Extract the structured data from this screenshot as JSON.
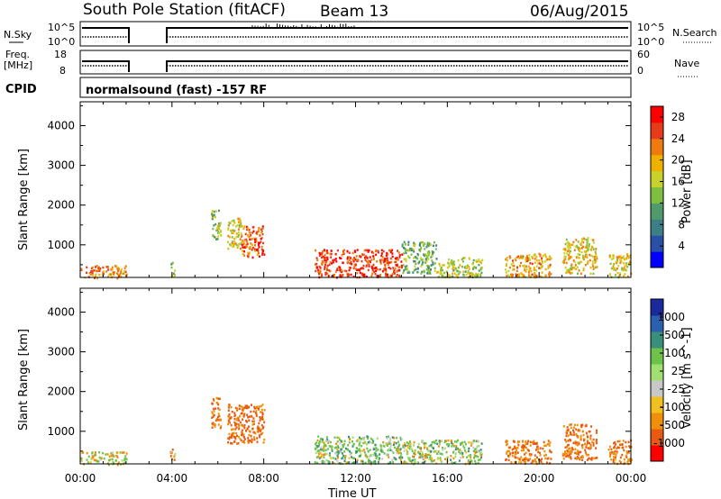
{
  "header": {
    "station": "South Pole Station (fitACF)",
    "beam": "Beam 13",
    "date": "06/Aug/2015"
  },
  "strip_noise": {
    "left_label": "N.Sky",
    "left_ticks": [
      "10^5",
      "10^0"
    ],
    "right_label": "N.Search",
    "right_ticks": [
      "10^5",
      "10^0"
    ]
  },
  "strip_freq": {
    "left_label_line1": "Freq.",
    "left_label_line2": "[MHz]",
    "left_ticks": [
      "18",
      "8"
    ],
    "right_label": "Nave",
    "right_ticks": [
      "60",
      "0"
    ]
  },
  "cpid": {
    "label": "CPID",
    "mode_text": "normalsound (fast) -157 RF"
  },
  "colors": {
    "power": [
      "#0000ff",
      "#2a4fa6",
      "#3d7f86",
      "#4e9a6a",
      "#7fbf3f",
      "#c8d22a",
      "#f0b000",
      "#f07a10",
      "#e63c1a",
      "#ff0000"
    ],
    "velocity": [
      "#1a2a9a",
      "#2b5fb0",
      "#3a8f7a",
      "#6cc24a",
      "#9fe070",
      "#c8c8c8",
      "#f0c020",
      "#f0900a",
      "#e85a10",
      "#ff0000"
    ]
  },
  "chart_data": [
    {
      "type": "heatmap",
      "title": "Power",
      "xlabel": "Time UT",
      "ylabel": "Slant Range [km]",
      "xlim": [
        "00:00",
        "24:00"
      ],
      "ylim": [
        180,
        4600
      ],
      "x_ticks": [
        "00:00",
        "04:00",
        "08:00",
        "12:00",
        "16:00",
        "20:00",
        "00:00"
      ],
      "y_ticks": [
        1000,
        2000,
        3000,
        4000
      ],
      "colorbar": {
        "label": "Power [dB]",
        "ticks": [
          4,
          8,
          12,
          16,
          20,
          24,
          28
        ],
        "range": [
          0,
          30
        ]
      },
      "echo_regions": [
        {
          "t_start": 0.0,
          "t_end": 2.0,
          "r_start": 180,
          "r_end": 500,
          "level": 22
        },
        {
          "t_start": 3.9,
          "t_end": 4.1,
          "r_start": 180,
          "r_end": 600,
          "level": 14
        },
        {
          "t_start": 5.7,
          "t_end": 6.1,
          "r_start": 1100,
          "r_end": 1900,
          "level": 14
        },
        {
          "t_start": 6.4,
          "t_end": 7.0,
          "r_start": 900,
          "r_end": 1700,
          "level": 18
        },
        {
          "t_start": 7.0,
          "t_end": 8.0,
          "r_start": 700,
          "r_end": 1500,
          "level": 24
        },
        {
          "t_start": 10.2,
          "t_end": 14.0,
          "r_start": 200,
          "r_end": 900,
          "level": 26
        },
        {
          "t_start": 14.0,
          "t_end": 15.5,
          "r_start": 300,
          "r_end": 1100,
          "level": 12
        },
        {
          "t_start": 15.5,
          "t_end": 17.5,
          "r_start": 200,
          "r_end": 700,
          "level": 16
        },
        {
          "t_start": 18.5,
          "t_end": 20.5,
          "r_start": 200,
          "r_end": 800,
          "level": 20
        },
        {
          "t_start": 21.0,
          "t_end": 22.5,
          "r_start": 300,
          "r_end": 1200,
          "level": 18
        },
        {
          "t_start": 23.0,
          "t_end": 24.0,
          "r_start": 200,
          "r_end": 800,
          "level": 18
        }
      ]
    },
    {
      "type": "heatmap",
      "title": "Velocity",
      "xlabel": "Time UT",
      "ylabel": "Slant Range [km]",
      "xlim": [
        "00:00",
        "24:00"
      ],
      "ylim": [
        180,
        4600
      ],
      "x_ticks": [
        "00:00",
        "04:00",
        "08:00",
        "12:00",
        "16:00",
        "20:00",
        "00:00"
      ],
      "y_ticks": [
        1000,
        2000,
        3000,
        4000
      ],
      "colorbar": {
        "label": "Velocity [m s^-1]",
        "ticks": [
          1000,
          500,
          100,
          25,
          -25,
          -100,
          -500,
          -1000
        ]
      },
      "echo_regions": [
        {
          "t_start": 0.0,
          "t_end": 2.0,
          "r_start": 180,
          "r_end": 500,
          "level": 0
        },
        {
          "t_start": 3.9,
          "t_end": 4.1,
          "r_start": 180,
          "r_end": 600,
          "level": -200
        },
        {
          "t_start": 5.7,
          "t_end": 6.1,
          "r_start": 1100,
          "r_end": 1900,
          "level": -300
        },
        {
          "t_start": 6.4,
          "t_end": 8.0,
          "r_start": 700,
          "r_end": 1700,
          "level": -400
        },
        {
          "t_start": 10.2,
          "t_end": 14.0,
          "r_start": 200,
          "r_end": 900,
          "level": 150
        },
        {
          "t_start": 14.0,
          "t_end": 17.5,
          "r_start": 200,
          "r_end": 800,
          "level": 120
        },
        {
          "t_start": 18.5,
          "t_end": 20.5,
          "r_start": 200,
          "r_end": 800,
          "level": -300
        },
        {
          "t_start": 21.0,
          "t_end": 22.5,
          "r_start": 300,
          "r_end": 1200,
          "level": -350
        },
        {
          "t_start": 23.0,
          "t_end": 24.0,
          "r_start": 200,
          "r_end": 800,
          "level": -300
        }
      ]
    }
  ]
}
